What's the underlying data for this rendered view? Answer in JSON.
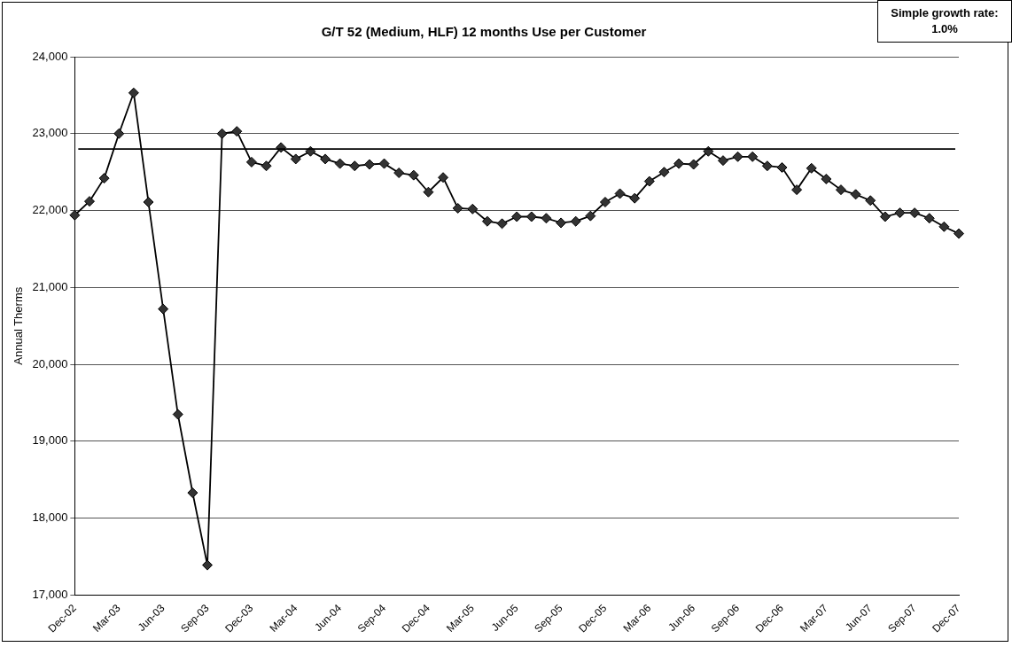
{
  "chart_data": {
    "type": "line",
    "title": "G/T 52 (Medium, HLF) 12 months Use per Customer",
    "ylabel": "Annual Therms",
    "annotations": [
      "Simple growth rate: 1.0%"
    ],
    "categories": [
      "Dec-02",
      null,
      null,
      "Mar-03",
      null,
      null,
      "Jun-03",
      null,
      null,
      "Sep-03",
      null,
      null,
      "Dec-03",
      null,
      null,
      "Mar-04",
      null,
      null,
      "Jun-04",
      null,
      null,
      "Sep-04",
      null,
      null,
      "Dec-04",
      null,
      null,
      "Mar-05",
      null,
      null,
      "Jun-05",
      null,
      null,
      "Sep-05",
      null,
      null,
      "Dec-05",
      null,
      null,
      "Mar-06",
      null,
      null,
      "Jun-06",
      null,
      null,
      "Sep-06",
      null,
      null,
      "Dec-06",
      null,
      null,
      "Mar-07",
      null,
      null,
      "Jun-07",
      null,
      null,
      "Sep-07",
      null,
      null,
      "Dec-07"
    ],
    "series": [
      {
        "color": "#333333",
        "values": [
          21940,
          22120,
          22420,
          23000,
          23530,
          22110,
          20720,
          19350,
          18330,
          17390,
          23000,
          23030,
          22630,
          22580,
          22820,
          22670,
          22770,
          22670,
          22610,
          22580,
          22600,
          22610,
          22490,
          22460,
          22240,
          22430,
          22030,
          22020,
          21860,
          21830,
          21920,
          21920,
          21900,
          21840,
          21860,
          21930,
          22110,
          22220,
          22160,
          22380,
          22500,
          22610,
          22600,
          22770,
          22650,
          22700,
          22700,
          22580,
          22560,
          22270,
          22550,
          22410,
          22270,
          22210,
          22130,
          21920,
          21970,
          21970,
          21900,
          21790,
          21700
        ]
      }
    ],
    "ylim": [
      17000,
      24000
    ],
    "yticks": [
      {
        "value": 17000,
        "label": "17,000"
      },
      {
        "value": 18000,
        "label": "18,000"
      },
      {
        "value": 19000,
        "label": "19,000"
      },
      {
        "value": 20000,
        "label": "20,000"
      },
      {
        "value": 21000,
        "label": "21,000"
      },
      {
        "value": 22000,
        "label": "22,000"
      },
      {
        "value": 23000,
        "label": "23,000"
      },
      {
        "value": 24000,
        "label": "24,000"
      }
    ],
    "ref_lines": [
      {
        "axis": "y",
        "value": 22800,
        "color": "#000000"
      }
    ],
    "grid": "y",
    "legend": false,
    "marker": "diamond",
    "line_style": "solid"
  }
}
